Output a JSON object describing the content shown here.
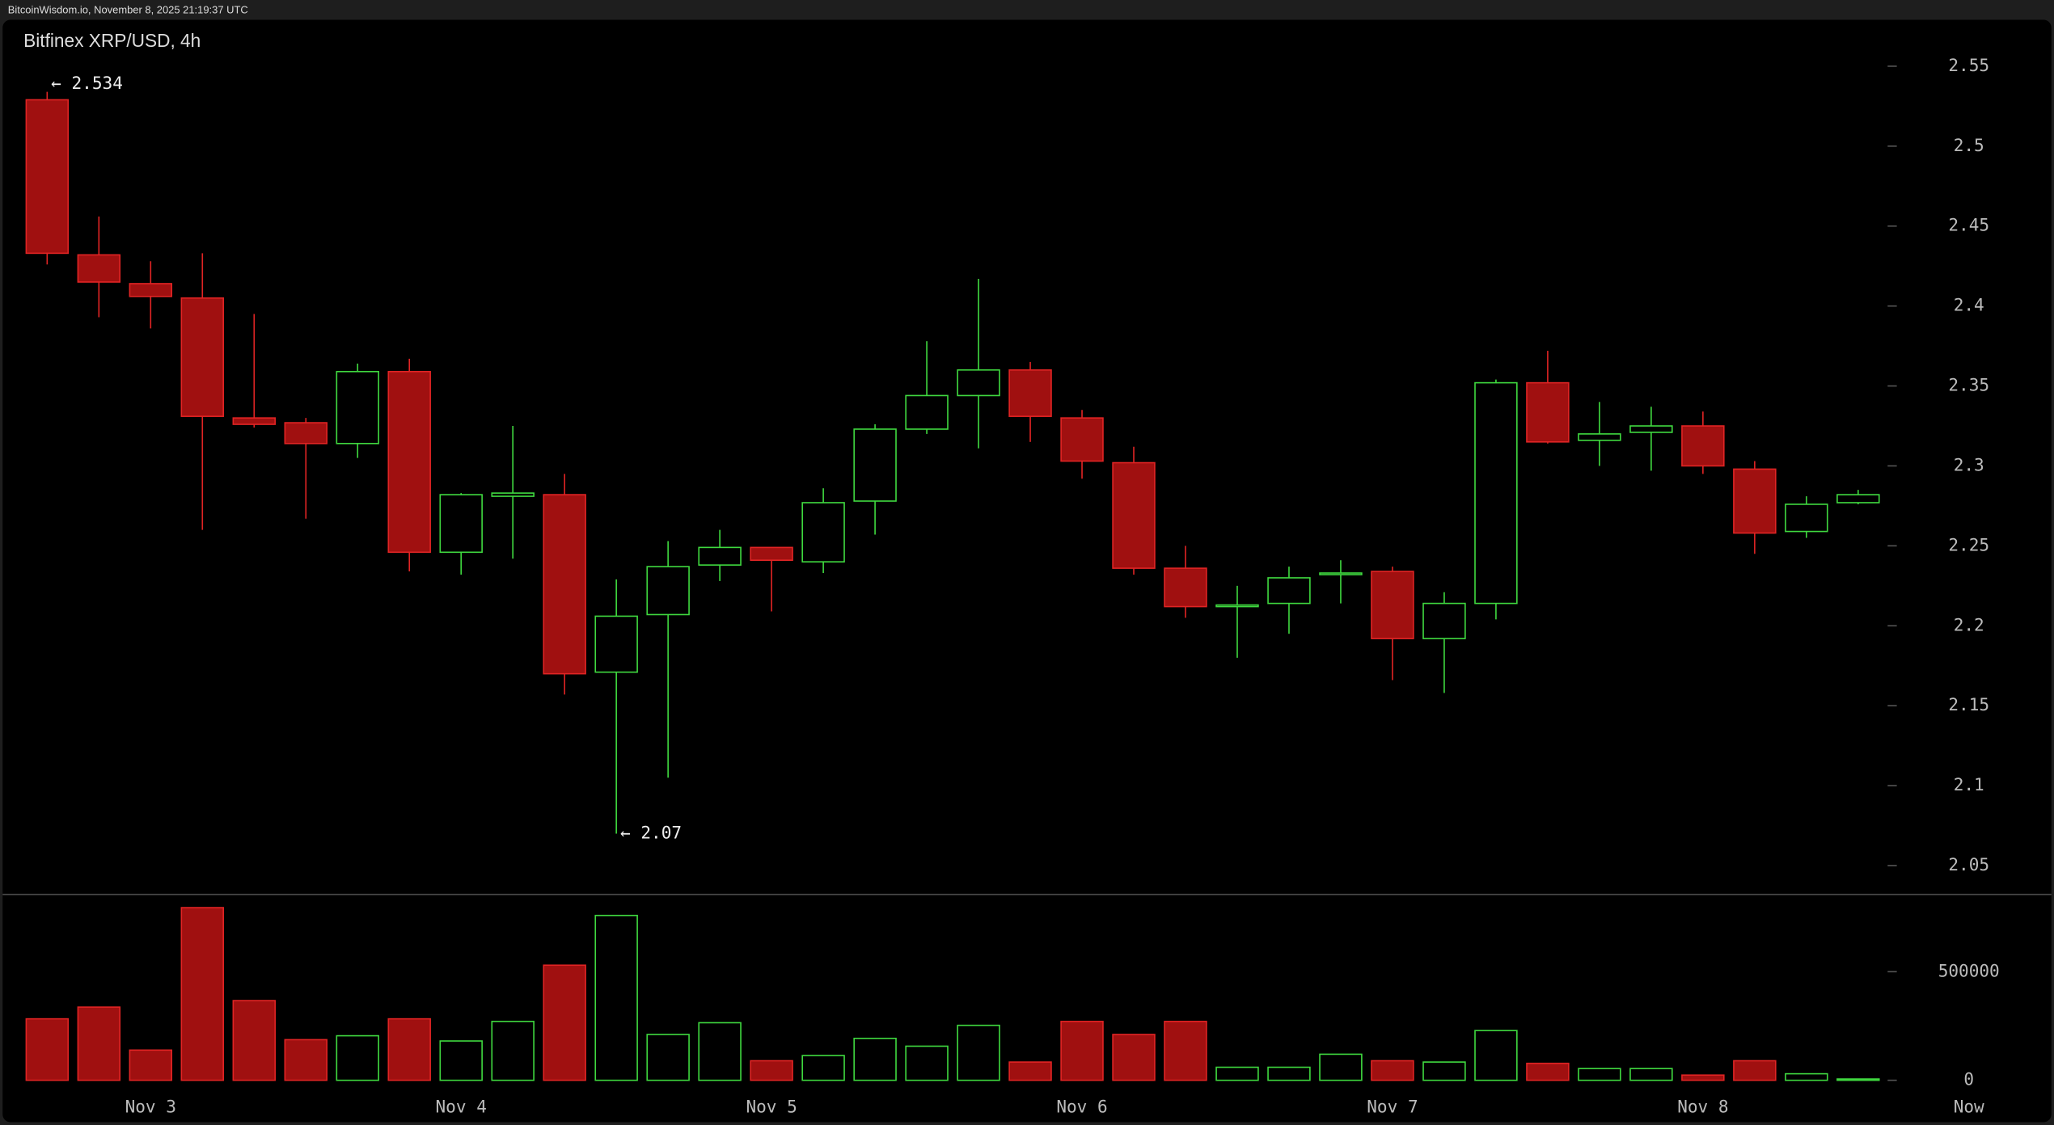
{
  "header": "BitcoinWisdom.io, November 8, 2025 21:19:37 UTC",
  "chart_data": {
    "type": "candlestick",
    "title": "Bitfinex XRP/USD, 4h",
    "categories": [
      null,
      null,
      "Nov 3",
      null,
      null,
      null,
      null,
      null,
      "Nov 4",
      null,
      null,
      null,
      null,
      null,
      "Nov 5",
      null,
      null,
      null,
      null,
      null,
      "Nov 6",
      null,
      null,
      null,
      null,
      null,
      "Nov 7",
      null,
      null,
      null,
      null,
      null,
      "Nov 8",
      null,
      null,
      null
    ],
    "x_end_label": "Now",
    "open": [
      2.529,
      2.432,
      2.414,
      2.405,
      2.33,
      2.327,
      2.314,
      2.359,
      2.246,
      2.281,
      2.282,
      2.171,
      2.207,
      2.238,
      2.249,
      2.24,
      2.278,
      2.323,
      2.344,
      2.36,
      2.33,
      2.302,
      2.236,
      2.212,
      2.214,
      2.232,
      2.234,
      2.192,
      2.214,
      2.352,
      2.316,
      2.321,
      2.325,
      2.298,
      2.259,
      2.277
    ],
    "high": [
      2.534,
      2.456,
      2.428,
      2.433,
      2.395,
      2.33,
      2.364,
      2.367,
      2.283,
      2.325,
      2.295,
      2.229,
      2.253,
      2.26,
      2.249,
      2.286,
      2.326,
      2.378,
      2.417,
      2.365,
      2.335,
      2.312,
      2.25,
      2.225,
      2.237,
      2.241,
      2.237,
      2.221,
      2.354,
      2.372,
      2.34,
      2.337,
      2.334,
      2.303,
      2.281,
      2.285
    ],
    "low": [
      2.426,
      2.393,
      2.386,
      2.26,
      2.324,
      2.267,
      2.305,
      2.234,
      2.232,
      2.242,
      2.157,
      2.07,
      2.105,
      2.228,
      2.209,
      2.233,
      2.257,
      2.32,
      2.311,
      2.315,
      2.292,
      2.232,
      2.205,
      2.18,
      2.195,
      2.214,
      2.166,
      2.158,
      2.204,
      2.314,
      2.3,
      2.297,
      2.295,
      2.245,
      2.255,
      2.276
    ],
    "close": [
      2.433,
      2.415,
      2.406,
      2.331,
      2.326,
      2.314,
      2.359,
      2.246,
      2.282,
      2.283,
      2.17,
      2.206,
      2.237,
      2.249,
      2.241,
      2.277,
      2.323,
      2.344,
      2.36,
      2.331,
      2.303,
      2.236,
      2.212,
      2.213,
      2.23,
      2.233,
      2.192,
      2.214,
      2.352,
      2.315,
      2.32,
      2.325,
      2.3,
      2.258,
      2.276,
      2.282
    ],
    "volume": [
      283000,
      337000,
      139000,
      795000,
      367000,
      187000,
      205000,
      283000,
      181000,
      271000,
      530000,
      759000,
      211000,
      265000,
      90000,
      114000,
      193000,
      157000,
      253000,
      84000,
      271000,
      211000,
      271000,
      60000,
      60000,
      120000,
      90000,
      84000,
      229000,
      78000,
      54000,
      54000,
      24000,
      90000,
      30000,
      6000
    ],
    "up_color": "#3fd83f",
    "down_color": "#a01010",
    "down_edge": "#e02424",
    "ylim": [
      2.032,
      2.579
    ],
    "yticks": [
      2.05,
      2.1,
      2.15,
      2.2,
      2.25,
      2.3,
      2.35,
      2.4,
      2.45,
      2.5,
      2.55
    ],
    "volume_ylim": [
      0,
      850000
    ],
    "volume_yticks": [
      0,
      500000
    ],
    "annotations": [
      {
        "text": "← 2.534",
        "value": 2.534
      },
      {
        "text": "← 2.07",
        "value": 2.07
      }
    ]
  }
}
